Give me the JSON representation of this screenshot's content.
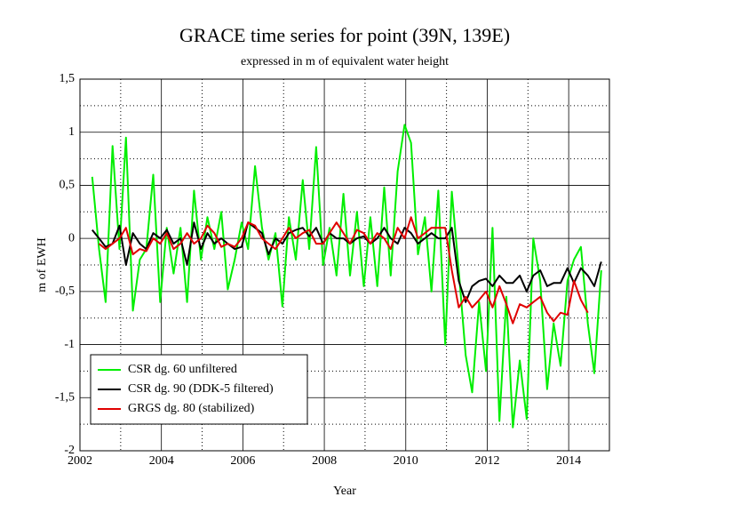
{
  "chart_data": {
    "type": "line",
    "title": "GRACE time series for point (39N, 139E)",
    "subtitle": "expressed in m of equivalent water height",
    "x_label": "Year",
    "y_label": "m of EWH",
    "xlim": [
      2002,
      2015
    ],
    "ylim": [
      -2,
      1.5
    ],
    "xticks": [
      2002,
      2004,
      2006,
      2008,
      2010,
      2012,
      2014
    ],
    "xminor": [
      2003,
      2005,
      2007,
      2009,
      2011,
      2013
    ],
    "yticks": [
      -2,
      {
        "value": -1.5,
        "label": "-1,5"
      },
      -1,
      {
        "value": -0.5,
        "label": "-0,5"
      },
      0,
      {
        "value": 0.5,
        "label": "0,5"
      },
      1,
      {
        "value": 1.5,
        "label": "1,5"
      }
    ],
    "yminor": [
      -1.75,
      -1.25,
      -0.75,
      -0.25,
      0.25,
      0.75,
      1.25
    ],
    "grid": true,
    "legend": "lower left",
    "x": [
      2002.3,
      2002.47,
      2002.63,
      2002.8,
      2002.97,
      2003.13,
      2003.3,
      2003.47,
      2003.63,
      2003.8,
      2003.97,
      2004.13,
      2004.3,
      2004.47,
      2004.63,
      2004.8,
      2004.97,
      2005.13,
      2005.3,
      2005.47,
      2005.63,
      2005.8,
      2005.97,
      2006.13,
      2006.3,
      2006.47,
      2006.63,
      2006.8,
      2006.97,
      2007.13,
      2007.3,
      2007.47,
      2007.63,
      2007.8,
      2007.97,
      2008.13,
      2008.3,
      2008.47,
      2008.63,
      2008.8,
      2008.97,
      2009.13,
      2009.3,
      2009.47,
      2009.63,
      2009.8,
      2009.97,
      2010.13,
      2010.3,
      2010.47,
      2010.63,
      2010.8,
      2010.97,
      2011.13,
      2011.3,
      2011.47,
      2011.63,
      2011.8,
      2011.97,
      2012.13,
      2012.3,
      2012.47,
      2012.63,
      2012.8,
      2012.97,
      2013.13,
      2013.3,
      2013.47,
      2013.63,
      2013.8,
      2013.97,
      2014.13,
      2014.3,
      2014.47,
      2014.63,
      2014.8
    ],
    "series": [
      {
        "name": "CSR dg. 60 unfiltered",
        "color": "#00ee00",
        "values": [
          0.58,
          -0.1,
          -0.6,
          0.87,
          -0.1,
          0.95,
          -0.68,
          -0.2,
          -0.1,
          0.6,
          -0.6,
          0.1,
          -0.33,
          0.1,
          -0.6,
          0.45,
          -0.2,
          0.2,
          -0.1,
          0.25,
          -0.48,
          -0.2,
          0.15,
          -0.1,
          0.68,
          0.1,
          -0.2,
          0.05,
          -0.64,
          0.2,
          -0.2,
          0.55,
          -0.1,
          0.86,
          -0.25,
          0.1,
          -0.35,
          0.42,
          -0.35,
          0.25,
          -0.45,
          0.2,
          -0.45,
          0.48,
          -0.35,
          0.63,
          1.07,
          0.9,
          -0.15,
          0.2,
          -0.5,
          0.45,
          -1.0,
          0.44,
          -0.3,
          -1.1,
          -1.45,
          -0.6,
          -1.25,
          0.1,
          -1.72,
          -0.55,
          -1.78,
          -1.15,
          -1.7,
          0.0,
          -0.4,
          -1.42,
          -0.8,
          -1.2,
          -0.4,
          -0.2,
          -0.08,
          -0.8,
          -1.27,
          -0.3
        ]
      },
      {
        "name": "CSR dg. 90 (DDK-5 filtered)",
        "color": "#000000",
        "values": [
          0.08,
          0.0,
          -0.08,
          -0.05,
          0.12,
          -0.25,
          0.05,
          -0.05,
          -0.1,
          0.05,
          0.0,
          0.08,
          -0.05,
          0.0,
          -0.25,
          0.15,
          -0.1,
          0.05,
          -0.05,
          0.0,
          -0.05,
          -0.1,
          -0.08,
          0.15,
          0.1,
          0.05,
          -0.15,
          0.0,
          -0.05,
          0.05,
          0.08,
          0.1,
          0.02,
          0.1,
          -0.05,
          0.05,
          0.0,
          0.0,
          -0.05,
          0.0,
          0.02,
          -0.05,
          0.0,
          0.1,
          0.0,
          -0.05,
          0.1,
          0.05,
          -0.05,
          0.0,
          0.05,
          0.0,
          0.0,
          0.1,
          -0.4,
          -0.6,
          -0.45,
          -0.4,
          -0.38,
          -0.45,
          -0.35,
          -0.42,
          -0.42,
          -0.35,
          -0.5,
          -0.35,
          -0.3,
          -0.45,
          -0.42,
          -0.42,
          -0.28,
          -0.42,
          -0.28,
          -0.35,
          -0.45,
          -0.22
        ]
      },
      {
        "name": "GRGS dg. 80 (stabilized)",
        "color": "#e00000",
        "values": [
          null,
          -0.05,
          -0.1,
          -0.05,
          0.0,
          0.1,
          -0.15,
          -0.1,
          -0.12,
          0.0,
          -0.05,
          0.05,
          -0.1,
          -0.05,
          0.05,
          -0.05,
          0.0,
          0.12,
          0.05,
          -0.08,
          -0.05,
          -0.08,
          0.0,
          0.15,
          0.12,
          0.0,
          -0.05,
          -0.1,
          0.0,
          0.1,
          0.0,
          0.05,
          0.08,
          -0.05,
          -0.05,
          0.05,
          0.15,
          0.05,
          -0.05,
          0.08,
          0.05,
          -0.05,
          0.05,
          0.0,
          -0.1,
          0.1,
          0.0,
          0.2,
          0.0,
          0.05,
          0.1,
          0.1,
          0.1,
          -0.3,
          -0.65,
          -0.55,
          -0.65,
          -0.58,
          -0.5,
          -0.65,
          -0.45,
          -0.62,
          -0.8,
          -0.62,
          -0.65,
          -0.6,
          -0.55,
          -0.7,
          -0.78,
          -0.7,
          -0.72,
          -0.4,
          -0.58,
          -0.7,
          null,
          null
        ]
      }
    ]
  }
}
